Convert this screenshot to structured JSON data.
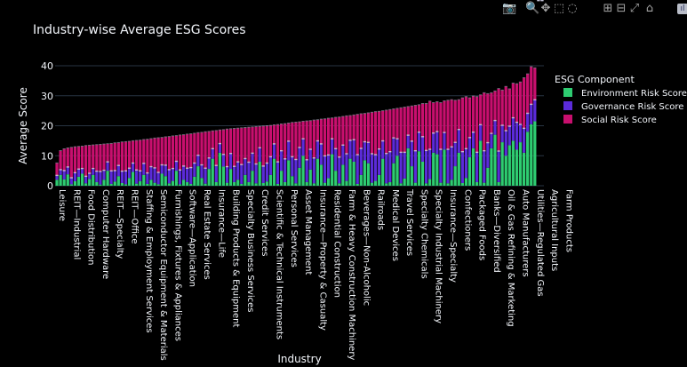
{
  "toolbar": {
    "items": [
      {
        "name": "camera-icon",
        "glyph": "📷"
      },
      {
        "name": "zoom-icon",
        "glyph": "🔍"
      },
      {
        "name": "pan-icon",
        "glyph": "✥"
      },
      {
        "name": "box-select-icon",
        "glyph": "⬚"
      },
      {
        "name": "lasso-select-icon",
        "glyph": "◌"
      },
      {
        "name": "zoom-in-icon",
        "glyph": "⊞"
      },
      {
        "name": "zoom-out-icon",
        "glyph": "⊟"
      },
      {
        "name": "autoscale-icon",
        "glyph": "⤢"
      },
      {
        "name": "reset-axes-icon",
        "glyph": "⌂"
      },
      {
        "name": "plotly-logo-icon",
        "glyph": "ıl"
      }
    ]
  },
  "colors": {
    "background": "#000000",
    "grid": "#283442",
    "text": "#f2f5fa",
    "environment": "#2ecc71",
    "governance": "#5b2bd9",
    "social": "#c80f6e",
    "cap": "#cfcfe6"
  },
  "chart_data": {
    "type": "bar",
    "stacked": true,
    "title": "Industry-wise Average ESG Scores",
    "xlabel": "Industry",
    "ylabel": "Average Score",
    "ylim": [
      0,
      40
    ],
    "yticks": [
      0,
      10,
      20,
      30,
      40
    ],
    "grid": true,
    "legend": {
      "title": "ESG Component",
      "placement": "right",
      "entries": [
        "Environment Risk Score",
        "Governance Risk Score",
        "Social Risk Score"
      ]
    },
    "tick_labels": [
      "Leisure",
      "REIT—Industrial",
      "Food Distribution",
      "Computer Hardware",
      "REIT—Specialty",
      "REIT—Office",
      "Staffing & Employment Services",
      "Semiconductor Equipment & Materials",
      "Furnishings, Fixtures & Appliances",
      "Software—Application",
      "Real Estate Services",
      "Insurance—Life",
      "Building Products & Equipment",
      "Specialty Business Services",
      "Credit Services",
      "Scientific & Technical Instruments",
      "Personal Services",
      "Asset Management",
      "Insurance—Property & Casualty",
      "Residential Construction",
      "Farm & Heavy Construction Machinery",
      "Beverages—Non-Alcoholic",
      "Railroads",
      "Medical Devices",
      "Travel Services",
      "Specialty Chemicals",
      "Specialty Industrial Machinery",
      "Insurance—Specialty",
      "Confectioners",
      "Packaged Foods",
      "Banks—Diversified",
      "Oil & Gas Refining & Marketing",
      "Auto Manufacturers",
      "Utilities—Regulated Gas",
      "Agricultural Inputs",
      "Farm Products"
    ],
    "totals": [
      7.5,
      11.6,
      12.2,
      12.5,
      12.7,
      12.9,
      13.0,
      13.1,
      13.3,
      13.4,
      13.5,
      13.6,
      13.7,
      13.8,
      13.9,
      14.0,
      14.2,
      14.3,
      14.5,
      14.6,
      14.7,
      14.9,
      15.0,
      15.1,
      15.3,
      15.4,
      15.6,
      15.8,
      15.9,
      16.0,
      16.2,
      16.3,
      16.5,
      16.6,
      16.8,
      16.9,
      17.1,
      17.2,
      17.4,
      17.6,
      17.7,
      17.9,
      18.0,
      18.2,
      18.3,
      18.5,
      18.6,
      18.8,
      18.9,
      19.0,
      19.1,
      19.2,
      19.3,
      19.4,
      19.5,
      19.6,
      19.7,
      19.8,
      19.9,
      20.0,
      20.2,
      20.3,
      20.5,
      20.6,
      20.8,
      21.0,
      21.1,
      21.2,
      21.4,
      21.5,
      21.6,
      21.8,
      21.9,
      22.1,
      22.2,
      22.4,
      22.5,
      22.7,
      22.8,
      23.0,
      23.2,
      23.3,
      23.5,
      23.7,
      23.9,
      24.0,
      24.2,
      24.4,
      24.6,
      24.7,
      24.9,
      25.1,
      25.3,
      25.5,
      25.7,
      25.9,
      26.1,
      26.3,
      26.5,
      26.7,
      26.9,
      27.1,
      27.3,
      27.5,
      27.6,
      27.8,
      28.0,
      28.2,
      28.4,
      28.6,
      28.8,
      29.0,
      29.2,
      29.4,
      29.6,
      29.8,
      30.0,
      30.2,
      30.5,
      30.7,
      30.9,
      31.1,
      31.3,
      31.6,
      31.8,
      32.0,
      32.3,
      32.6,
      32.9,
      33.3,
      33.7,
      34.5,
      35.9,
      37.2,
      39.2
    ],
    "series": [
      {
        "name": "Environment Risk Score",
        "values": [
          2.0,
          3.6,
          2.1,
          3.8,
          0.5,
          1.5,
          3.0,
          4.0,
          0.8,
          2.2,
          3.6,
          1.2,
          0.4,
          2.0,
          5.0,
          0.6,
          1.4,
          3.2,
          0.9,
          0.5,
          2.6,
          4.6,
          0.7,
          1.5,
          3.6,
          0.6,
          2.0,
          1.0,
          0.5,
          4.0,
          3.2,
          0.8,
          1.6,
          5.0,
          0.5,
          2.0,
          1.2,
          0.6,
          3.0,
          6.5,
          2.6,
          0.7,
          5.6,
          9.0,
          1.2,
          11.0,
          6.4,
          1.0,
          5.6,
          1.2,
          2.0,
          0.6,
          3.6,
          1.2,
          5.0,
          0.8,
          8.0,
          0.9,
          1.4,
          3.6,
          9.0,
          0.6,
          5.0,
          1.2,
          8.5,
          3.2,
          0.8,
          6.0,
          10.0,
          1.2,
          5.4,
          0.8,
          9.0,
          7.0,
          1.0,
          2.5,
          10.5,
          5.0,
          0.8,
          7.0,
          1.6,
          9.0,
          8.0,
          0.6,
          3.6,
          8.5,
          7.5,
          1.0,
          1.6,
          3.6,
          9.0,
          0.8,
          1.2,
          7.5,
          10.0,
          0.8,
          2.4,
          12.5,
          6.5,
          1.0,
          11.5,
          8.0,
          0.8,
          2.2,
          11.0,
          10.5,
          1.0,
          12.0,
          0.8,
          2.0,
          6.5,
          11.0,
          0.9,
          2.6,
          9.5,
          12.5,
          1.2,
          15.0,
          1.0,
          6.0,
          12.5,
          17.0,
          1.2,
          14.5,
          10.0,
          13.5,
          15.0,
          12.0,
          14.5,
          11.0,
          18.0,
          20.5,
          21.5
        ]
      },
      {
        "name": "Governance Risk Score",
        "values": [
          1.3,
          1.6,
          2.8,
          2.3,
          2.0,
          2.7,
          2.4,
          1.6,
          2.2,
          1.8,
          2.0,
          3.5,
          4.2,
          3.0,
          2.8,
          4.2,
          3.5,
          3.4,
          3.8,
          4.3,
          3.1,
          2.8,
          4.4,
          3.3,
          3.7,
          3.5,
          4.2,
          4.8,
          3.8,
          2.8,
          3.5,
          4.4,
          4.0,
          3.0,
          4.6,
          4.4,
          4.5,
          5.3,
          4.4,
          3.5,
          4.2,
          5.0,
          3.5,
          3.2,
          5.4,
          2.9,
          3.9,
          5.2,
          5.0,
          5.1,
          5.8,
          6.3,
          5.3,
          6.5,
          5.7,
          6.3,
          4.5,
          5.5,
          6.0,
          5.9,
          4.8,
          7.2,
          6.5,
          7.6,
          6.2,
          6.3,
          7.8,
          6.6,
          5.5,
          7.3,
          6.6,
          8.3,
          5.8,
          6.8,
          8.8,
          7.6,
          5.0,
          7.2,
          8.6,
          6.4,
          8.9,
          6.0,
          7.2,
          9.6,
          8.7,
          6.0,
          6.8,
          9.5,
          8.6,
          8.5,
          5.8,
          9.8,
          10.0,
          8.3,
          5.5,
          10.2,
          8.6,
          4.2,
          8.2,
          10.5,
          6.2,
          8.2,
          10.8,
          9.8,
          6.4,
          7.4,
          11.0,
          5.6,
          11.2,
          10.8,
          7.8,
          7.6,
          10.3,
          9.6,
          6.4,
          5.2,
          9.8,
          5.2,
          10.5,
          8.2,
          4.8,
          4.6,
          10.2,
          5.5,
          8.2,
          6.2,
          7.5,
          9.0,
          5.8,
          8.0,
          6.0,
          6.5,
          7.0
        ]
      },
      {
        "name": "Social Risk Score",
        "values": [
          4.2,
          6.4,
          7.3,
          6.4,
          10.2,
          8.7,
          7.6,
          7.5,
          10.3,
          9.4,
          7.9,
          8.9,
          9.1,
          8.8,
          6.1,
          9.2,
          9.3,
          7.7,
          9.8,
          9.8,
          9.0,
          7.5,
          9.9,
          10.3,
          8.0,
          11.3,
          9.4,
          10.0,
          11.6,
          9.2,
          9.5,
          11.1,
          10.9,
          8.6,
          11.7,
          10.5,
          11.4,
          11.3,
          10.0,
          7.6,
          10.9,
          12.2,
          8.9,
          6.0,
          11.7,
          4.6,
          8.3,
          12.6,
          8.3,
          12.7,
          11.3,
          12.3,
          10.4,
          11.7,
          8.8,
          12.5,
          7.2,
          13.4,
          12.5,
          10.5,
          6.4,
          12.5,
          9.0,
          11.8,
          6.1,
          11.5,
          12.5,
          8.6,
          5.9,
          13.0,
          9.6,
          12.7,
          7.1,
          8.3,
          12.4,
          12.3,
          7.0,
          10.5,
          13.4,
          9.6,
          12.7,
          8.3,
          8.3,
          13.5,
          11.6,
          9.5,
          9.9,
          13.9,
          14.4,
          12.6,
          10.1,
          14.5,
          14.1,
          9.7,
          10.2,
          14.9,
          15.1,
          9.6,
          11.8,
          15.2,
          9.2,
          11.1,
          15.7,
          16.1,
          10.2,
          10.0,
          15.6,
          10.6,
          16.4,
          15.8,
          14.1,
          10.0,
          18.0,
          17.4,
          13.3,
          12.1,
          18.6,
          10.0,
          19.4,
          16.4,
          13.6,
          9.9,
          20.9,
          11.8,
          14.8,
          12.5,
          11.6,
          12.9,
          14.2,
          16.9,
          13.2,
          12.6,
          10.7
        ]
      }
    ]
  }
}
